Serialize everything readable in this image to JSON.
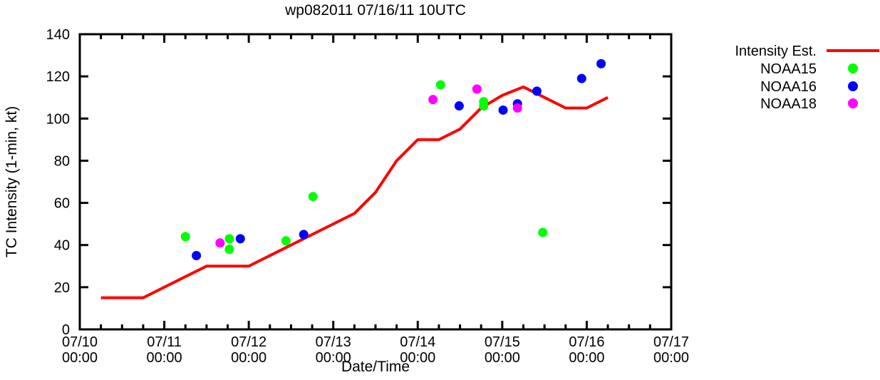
{
  "title": "wp082011 07/16/11 10UTC",
  "axes": {
    "x_label": "Date/Time",
    "y_label": "TC Intensity (1-min, kt)",
    "x_ticks": [
      {
        "date": "07/10",
        "time": "00:00"
      },
      {
        "date": "07/11",
        "time": "00:00"
      },
      {
        "date": "07/12",
        "time": "00:00"
      },
      {
        "date": "07/13",
        "time": "00:00"
      },
      {
        "date": "07/14",
        "time": "00:00"
      },
      {
        "date": "07/15",
        "time": "00:00"
      },
      {
        "date": "07/16",
        "time": "00:00"
      },
      {
        "date": "07/17",
        "time": "00:00"
      }
    ],
    "y_ticks": [
      0,
      20,
      40,
      60,
      80,
      100,
      120,
      140
    ]
  },
  "colors": {
    "frame": "#000000",
    "background": "#ffffff",
    "intensity_line": "#ff0000",
    "noaa15": "#00ff00",
    "noaa16": "#0000ff",
    "noaa18": "#ff00ff"
  },
  "chart_data": {
    "type": "line",
    "title": "wp082011 07/16/11 10UTC",
    "xlabel": "Date/Time",
    "ylabel": "TC Intensity (1-min, kt)",
    "x_unit": "days since 07/10 00:00 UTC",
    "xlim": [
      0,
      7
    ],
    "ylim": [
      0,
      140
    ],
    "grid": false,
    "legend_position": "outside-right-top",
    "x_minor_ticks_per_day": 4,
    "series": [
      {
        "name": "Intensity Est.",
        "type": "line",
        "color": "#ff0000",
        "points": [
          [
            0.25,
            15
          ],
          [
            0.75,
            15
          ],
          [
            1.5,
            30
          ],
          [
            2.0,
            30
          ],
          [
            3.25,
            55
          ],
          [
            3.5,
            65
          ],
          [
            3.75,
            80
          ],
          [
            4.0,
            90
          ],
          [
            4.25,
            90
          ],
          [
            4.5,
            95
          ],
          [
            4.75,
            105
          ],
          [
            5.0,
            111
          ],
          [
            5.25,
            115
          ],
          [
            5.75,
            105
          ],
          [
            6.0,
            105
          ],
          [
            6.25,
            110
          ]
        ]
      },
      {
        "name": "NOAA15",
        "type": "scatter",
        "color": "#00ff00",
        "points": [
          [
            1.25,
            44
          ],
          [
            1.77,
            43
          ],
          [
            1.77,
            38
          ],
          [
            2.44,
            42
          ],
          [
            2.76,
            63
          ],
          [
            4.27,
            116
          ],
          [
            4.78,
            108
          ],
          [
            4.78,
            106
          ],
          [
            5.48,
            46
          ]
        ]
      },
      {
        "name": "NOAA16",
        "type": "scatter",
        "color": "#0000ff",
        "points": [
          [
            1.38,
            35
          ],
          [
            1.9,
            43
          ],
          [
            2.65,
            45
          ],
          [
            4.49,
            106
          ],
          [
            5.01,
            104
          ],
          [
            5.18,
            107
          ],
          [
            5.41,
            113
          ],
          [
            5.94,
            119
          ],
          [
            6.17,
            126
          ]
        ]
      },
      {
        "name": "NOAA18",
        "type": "scatter",
        "color": "#ff00ff",
        "points": [
          [
            1.66,
            41
          ],
          [
            4.18,
            109
          ],
          [
            4.7,
            114
          ],
          [
            5.18,
            105
          ]
        ]
      }
    ]
  }
}
